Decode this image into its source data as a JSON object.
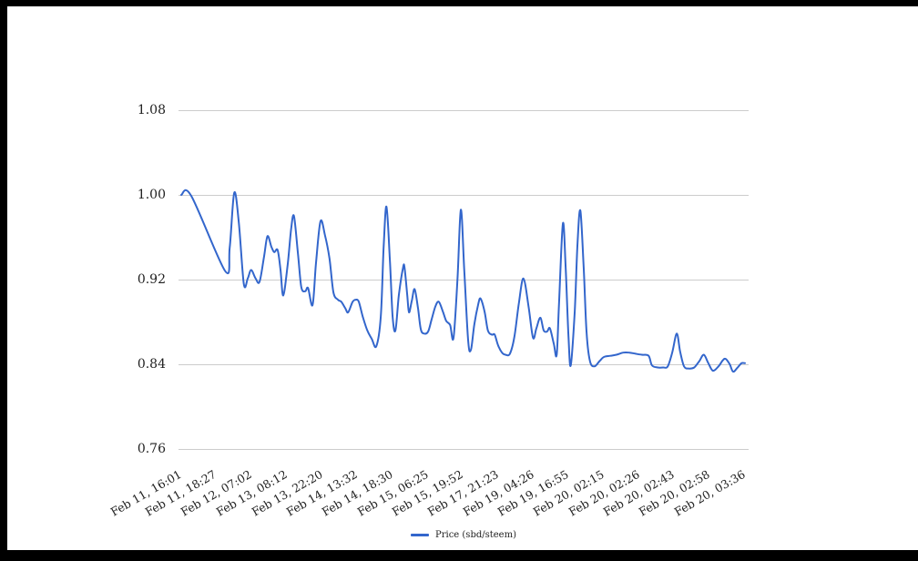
{
  "window": {
    "frame_color": "#000000",
    "background": "#ffffff"
  },
  "colors": {
    "gridline": "#cccccc",
    "axis_text": "#212121"
  },
  "legend": {
    "label": "Price (sbd/steem)"
  },
  "chart_data": {
    "type": "line",
    "title": "",
    "xlabel": "",
    "ylabel": "",
    "grid": true,
    "legend_position": "bottom",
    "y_range": [
      0.76,
      1.08
    ],
    "y_ticks": [
      "1.08",
      "1.00",
      "0.92",
      "0.84",
      "0.76"
    ],
    "x_tick_labels": [
      "Feb 11, 16:01",
      "Feb 11, 18:27",
      "Feb 12, 07:02",
      "Feb 13, 08:12",
      "Feb 13, 22:20",
      "Feb 14, 13:32",
      "Feb 14, 18:30",
      "Feb 15, 06:25",
      "Feb 15, 19:52",
      "Feb 17, 21:23",
      "Feb 19, 04:26",
      "Feb 19, 16:55",
      "Feb 20, 02:15",
      "Feb 20, 02:26",
      "Feb 20, 02:43",
      "Feb 20, 02:58",
      "Feb 20, 03:36"
    ],
    "series": [
      {
        "name": "Price (sbd/steem)",
        "color": "#3366cc",
        "points_x_fraction_value": [
          [
            0.0,
            1.0
          ],
          [
            0.018,
            0.999
          ],
          [
            0.078,
            0.928
          ],
          [
            0.086,
            0.95
          ],
          [
            0.094,
            1.002
          ],
          [
            0.102,
            0.975
          ],
          [
            0.111,
            0.916
          ],
          [
            0.118,
            0.921
          ],
          [
            0.124,
            0.929
          ],
          [
            0.132,
            0.921
          ],
          [
            0.139,
            0.918
          ],
          [
            0.147,
            0.942
          ],
          [
            0.153,
            0.961
          ],
          [
            0.16,
            0.951
          ],
          [
            0.165,
            0.946
          ],
          [
            0.171,
            0.948
          ],
          [
            0.176,
            0.93
          ],
          [
            0.181,
            0.905
          ],
          [
            0.189,
            0.935
          ],
          [
            0.195,
            0.968
          ],
          [
            0.2,
            0.98
          ],
          [
            0.207,
            0.945
          ],
          [
            0.213,
            0.913
          ],
          [
            0.22,
            0.909
          ],
          [
            0.225,
            0.912
          ],
          [
            0.233,
            0.896
          ],
          [
            0.239,
            0.935
          ],
          [
            0.247,
            0.975
          ],
          [
            0.255,
            0.962
          ],
          [
            0.263,
            0.94
          ],
          [
            0.27,
            0.908
          ],
          [
            0.278,
            0.901
          ],
          [
            0.284,
            0.899
          ],
          [
            0.291,
            0.893
          ],
          [
            0.296,
            0.889
          ],
          [
            0.304,
            0.899
          ],
          [
            0.31,
            0.901
          ],
          [
            0.315,
            0.899
          ],
          [
            0.322,
            0.885
          ],
          [
            0.33,
            0.872
          ],
          [
            0.338,
            0.864
          ],
          [
            0.346,
            0.857
          ],
          [
            0.354,
            0.885
          ],
          [
            0.359,
            0.95
          ],
          [
            0.364,
            0.989
          ],
          [
            0.37,
            0.94
          ],
          [
            0.375,
            0.885
          ],
          [
            0.38,
            0.872
          ],
          [
            0.386,
            0.905
          ],
          [
            0.393,
            0.93
          ],
          [
            0.396,
            0.932
          ],
          [
            0.401,
            0.905
          ],
          [
            0.404,
            0.889
          ],
          [
            0.409,
            0.9
          ],
          [
            0.414,
            0.911
          ],
          [
            0.42,
            0.893
          ],
          [
            0.425,
            0.873
          ],
          [
            0.431,
            0.869
          ],
          [
            0.438,
            0.871
          ],
          [
            0.444,
            0.882
          ],
          [
            0.451,
            0.895
          ],
          [
            0.457,
            0.899
          ],
          [
            0.464,
            0.89
          ],
          [
            0.47,
            0.881
          ],
          [
            0.477,
            0.877
          ],
          [
            0.483,
            0.865
          ],
          [
            0.49,
            0.92
          ],
          [
            0.496,
            0.986
          ],
          [
            0.502,
            0.93
          ],
          [
            0.509,
            0.862
          ],
          [
            0.514,
            0.854
          ],
          [
            0.52,
            0.878
          ],
          [
            0.527,
            0.897
          ],
          [
            0.531,
            0.902
          ],
          [
            0.538,
            0.89
          ],
          [
            0.544,
            0.872
          ],
          [
            0.551,
            0.868
          ],
          [
            0.556,
            0.868
          ],
          [
            0.562,
            0.858
          ],
          [
            0.569,
            0.851
          ],
          [
            0.575,
            0.849
          ],
          [
            0.583,
            0.85
          ],
          [
            0.591,
            0.866
          ],
          [
            0.599,
            0.898
          ],
          [
            0.607,
            0.921
          ],
          [
            0.616,
            0.895
          ],
          [
            0.624,
            0.865
          ],
          [
            0.63,
            0.874
          ],
          [
            0.637,
            0.884
          ],
          [
            0.643,
            0.872
          ],
          [
            0.649,
            0.871
          ],
          [
            0.654,
            0.874
          ],
          [
            0.661,
            0.859
          ],
          [
            0.666,
            0.849
          ],
          [
            0.67,
            0.895
          ],
          [
            0.677,
            0.973
          ],
          [
            0.682,
            0.93
          ],
          [
            0.687,
            0.865
          ],
          [
            0.691,
            0.839
          ],
          [
            0.698,
            0.89
          ],
          [
            0.703,
            0.955
          ],
          [
            0.708,
            0.985
          ],
          [
            0.714,
            0.93
          ],
          [
            0.719,
            0.87
          ],
          [
            0.725,
            0.843
          ],
          [
            0.733,
            0.838
          ],
          [
            0.742,
            0.843
          ],
          [
            0.75,
            0.847
          ],
          [
            0.761,
            0.848
          ],
          [
            0.772,
            0.849
          ],
          [
            0.784,
            0.851
          ],
          [
            0.795,
            0.851
          ],
          [
            0.806,
            0.85
          ],
          [
            0.817,
            0.849
          ],
          [
            0.829,
            0.848
          ],
          [
            0.835,
            0.839
          ],
          [
            0.845,
            0.837
          ],
          [
            0.855,
            0.837
          ],
          [
            0.863,
            0.838
          ],
          [
            0.871,
            0.851
          ],
          [
            0.879,
            0.869
          ],
          [
            0.885,
            0.852
          ],
          [
            0.892,
            0.838
          ],
          [
            0.901,
            0.836
          ],
          [
            0.91,
            0.837
          ],
          [
            0.919,
            0.843
          ],
          [
            0.927,
            0.849
          ],
          [
            0.935,
            0.841
          ],
          [
            0.943,
            0.834
          ],
          [
            0.953,
            0.838
          ],
          [
            0.961,
            0.844
          ],
          [
            0.966,
            0.845
          ],
          [
            0.973,
            0.84
          ],
          [
            0.979,
            0.833
          ],
          [
            0.987,
            0.837
          ],
          [
            0.994,
            0.841
          ],
          [
            1.0,
            0.841
          ]
        ]
      }
    ]
  }
}
